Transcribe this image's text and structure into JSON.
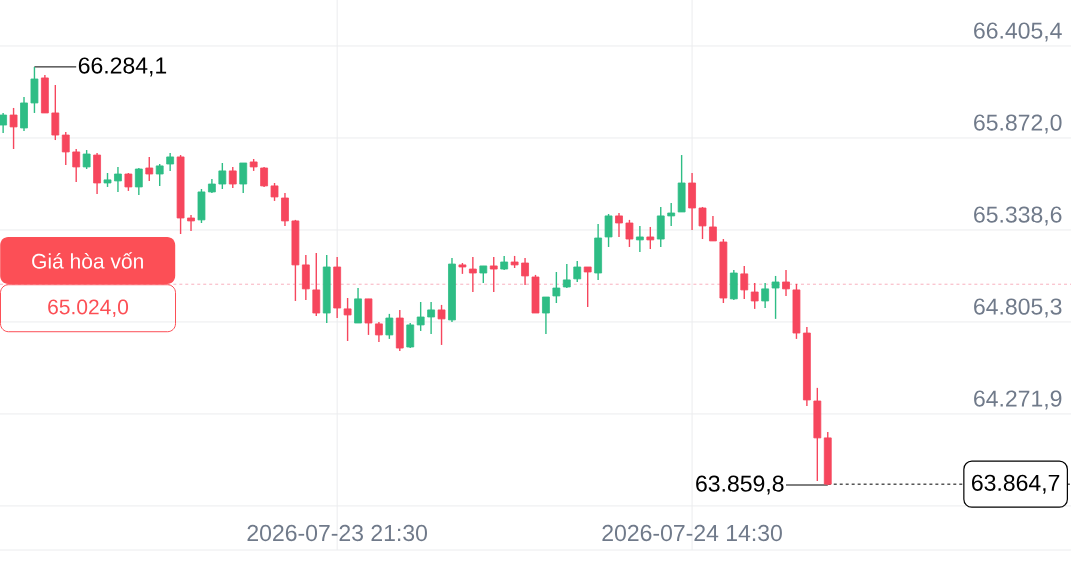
{
  "chart_data": {
    "type": "candlestick",
    "x": [
      "2026-07-23T05:30",
      "2026-07-23T06:00",
      "2026-07-23T06:30",
      "2026-07-23T07:00",
      "2026-07-23T07:30",
      "2026-07-23T08:00",
      "2026-07-23T08:30",
      "2026-07-23T09:00",
      "2026-07-23T09:30",
      "2026-07-23T10:00",
      "2026-07-23T10:30",
      "2026-07-23T11:00",
      "2026-07-23T11:30",
      "2026-07-23T12:00",
      "2026-07-23T12:30",
      "2026-07-23T13:00",
      "2026-07-23T13:30",
      "2026-07-23T14:00",
      "2026-07-23T14:30",
      "2026-07-23T15:00",
      "2026-07-23T15:30",
      "2026-07-23T16:00",
      "2026-07-23T16:30",
      "2026-07-23T17:00",
      "2026-07-23T17:30",
      "2026-07-23T18:00",
      "2026-07-23T18:30",
      "2026-07-23T19:00",
      "2026-07-23T19:30",
      "2026-07-23T20:00",
      "2026-07-23T20:30",
      "2026-07-23T21:00",
      "2026-07-23T21:30",
      "2026-07-23T22:00",
      "2026-07-23T22:30",
      "2026-07-23T23:00",
      "2026-07-23T23:30",
      "2026-07-24T00:00",
      "2026-07-24T00:30",
      "2026-07-24T01:00",
      "2026-07-24T01:30",
      "2026-07-24T02:00",
      "2026-07-24T02:30",
      "2026-07-24T03:00",
      "2026-07-24T03:30",
      "2026-07-24T04:00",
      "2026-07-24T04:30",
      "2026-07-24T05:00",
      "2026-07-24T05:30",
      "2026-07-24T06:00",
      "2026-07-24T06:30",
      "2026-07-24T07:00",
      "2026-07-24T07:30",
      "2026-07-24T08:00",
      "2026-07-24T08:30",
      "2026-07-24T09:00",
      "2026-07-24T09:30",
      "2026-07-24T10:00",
      "2026-07-24T10:30",
      "2026-07-24T11:00",
      "2026-07-24T11:30",
      "2026-07-24T12:00",
      "2026-07-24T12:30",
      "2026-07-24T13:00",
      "2026-07-24T13:30",
      "2026-07-24T14:00",
      "2026-07-24T14:30",
      "2026-07-24T15:00",
      "2026-07-24T15:30",
      "2026-07-24T16:00",
      "2026-07-24T16:30",
      "2026-07-24T17:00",
      "2026-07-24T17:30",
      "2026-07-24T18:00",
      "2026-07-24T18:30",
      "2026-07-24T19:00",
      "2026-07-24T19:30",
      "2026-07-24T20:00",
      "2026-07-24T20:30",
      "2026-07-24T21:00"
    ],
    "ohlc": [
      [
        65947,
        66017,
        65901,
        66005
      ],
      [
        66005,
        66046,
        65808,
        65936
      ],
      [
        65930,
        66110,
        65913,
        66075
      ],
      [
        66075,
        66284.1,
        66017,
        66214
      ],
      [
        66220,
        66237,
        66017,
        66017
      ],
      [
        66017,
        66179,
        65860,
        65889
      ],
      [
        65889,
        65907,
        65715,
        65791
      ],
      [
        65791,
        65808,
        65617,
        65704
      ],
      [
        65704,
        65802,
        65692,
        65779
      ],
      [
        65773,
        65785,
        65547,
        65611
      ],
      [
        65611,
        65669,
        65588,
        65629
      ],
      [
        65623,
        65704,
        65559,
        65663
      ],
      [
        65663,
        65669,
        65565,
        65588
      ],
      [
        65588,
        65698,
        65542,
        65692
      ],
      [
        65698,
        65762,
        65623,
        65663
      ],
      [
        65663,
        65721,
        65594,
        65710
      ],
      [
        65721,
        65785,
        65681,
        65762
      ],
      [
        65762,
        65773,
        65315,
        65408
      ],
      [
        65408,
        65426,
        65333,
        65391
      ],
      [
        65397,
        65576,
        65379,
        65559
      ],
      [
        65559,
        65634,
        65553,
        65605
      ],
      [
        65605,
        65727,
        65576,
        65681
      ],
      [
        65681,
        65704,
        65582,
        65605
      ],
      [
        65605,
        65727,
        65553,
        65727
      ],
      [
        65733,
        65750,
        65681,
        65704
      ],
      [
        65698,
        65704,
        65588,
        65594
      ],
      [
        65594,
        65611,
        65507,
        65530
      ],
      [
        65524,
        65553,
        65362,
        65391
      ],
      [
        65391,
        65397,
        64927,
        65136
      ],
      [
        65136,
        65194,
        64933,
        64997
      ],
      [
        64991,
        65205,
        64840,
        64857
      ],
      [
        64857,
        65194,
        64799,
        65124
      ],
      [
        65124,
        65182,
        64828,
        64886
      ],
      [
        64881,
        64944,
        64695,
        64846
      ],
      [
        64799,
        65002,
        64799,
        64939
      ],
      [
        64939,
        64939,
        64730,
        64799
      ],
      [
        64794,
        64805,
        64689,
        64730
      ],
      [
        64730,
        64852,
        64707,
        64828
      ],
      [
        64828,
        64875,
        64637,
        64654
      ],
      [
        64660,
        64799,
        64654,
        64788
      ],
      [
        64788,
        64921,
        64753,
        64834
      ],
      [
        64834,
        64921,
        64736,
        64875
      ],
      [
        64875,
        64904,
        64672,
        64823
      ],
      [
        64817,
        65176,
        64805,
        65141
      ],
      [
        65136,
        65147,
        65084,
        65124
      ],
      [
        65112,
        65182,
        64979,
        65089
      ],
      [
        65089,
        65130,
        65031,
        65130
      ],
      [
        65130,
        65182,
        64979,
        65112
      ],
      [
        65112,
        65188,
        65107,
        65153
      ],
      [
        65153,
        65188,
        65118,
        65136
      ],
      [
        65147,
        65176,
        65020,
        65072
      ],
      [
        65066,
        65078,
        64857,
        64857
      ],
      [
        64857,
        64950,
        64736,
        64950
      ],
      [
        64956,
        65095,
        64915,
        65002
      ],
      [
        65008,
        65141,
        65002,
        65049
      ],
      [
        65055,
        65159,
        65037,
        65124
      ],
      [
        65124,
        65124,
        64892,
        65095
      ],
      [
        65089,
        65373,
        65049,
        65292
      ],
      [
        65298,
        65431,
        65240,
        65420
      ],
      [
        65420,
        65437,
        65298,
        65379
      ],
      [
        65379,
        65397,
        65240,
        65286
      ],
      [
        65281,
        65362,
        65211,
        65298
      ],
      [
        65298,
        65356,
        65228,
        65281
      ],
      [
        65286,
        65472,
        65240,
        65420
      ],
      [
        65420,
        65495,
        65362,
        65437
      ],
      [
        65443,
        65773,
        65443,
        65611
      ],
      [
        65611,
        65669,
        65339,
        65466
      ],
      [
        65466,
        65472,
        65286,
        65362
      ],
      [
        65356,
        65420,
        65275,
        65275
      ],
      [
        65269,
        65286,
        64915,
        64944
      ],
      [
        64939,
        65107,
        64933,
        65089
      ],
      [
        65084,
        65130,
        64939,
        64991
      ],
      [
        64979,
        65031,
        64881,
        64927
      ],
      [
        64927,
        65031,
        64886,
        64997
      ],
      [
        65002,
        65072,
        64823,
        65037
      ],
      [
        65037,
        65107,
        64956,
        64997
      ],
      [
        64991,
        65026,
        64707,
        64741
      ],
      [
        64741,
        64776,
        64318,
        64353
      ],
      [
        64347,
        64423,
        63883,
        64133
      ],
      [
        64133,
        64167,
        63859.8,
        63864.7
      ]
    ],
    "colors": [
      "#2ebd85",
      "#f6465d",
      "#2ebd85",
      "#2ebd85",
      "#f6465d",
      "#f6465d",
      "#f6465d",
      "#f6465d",
      "#2ebd85",
      "#f6465d",
      "#2ebd85",
      "#2ebd85",
      "#f6465d",
      "#2ebd85",
      "#f6465d",
      "#2ebd85",
      "#2ebd85",
      "#f6465d",
      "#f6465d",
      "#2ebd85",
      "#2ebd85",
      "#2ebd85",
      "#f6465d",
      "#2ebd85",
      "#f6465d",
      "#f6465d",
      "#f6465d",
      "#f6465d",
      "#f6465d",
      "#f6465d",
      "#f6465d",
      "#2ebd85",
      "#f6465d",
      "#f6465d",
      "#2ebd85",
      "#f6465d",
      "#f6465d",
      "#2ebd85",
      "#f6465d",
      "#2ebd85",
      "#2ebd85",
      "#2ebd85",
      "#f6465d",
      "#2ebd85",
      "#f6465d",
      "#f6465d",
      "#2ebd85",
      "#f6465d",
      "#2ebd85",
      "#f6465d",
      "#f6465d",
      "#f6465d",
      "#2ebd85",
      "#2ebd85",
      "#2ebd85",
      "#2ebd85",
      "#f6465d",
      "#2ebd85",
      "#2ebd85",
      "#f6465d",
      "#f6465d",
      "#2ebd85",
      "#f6465d",
      "#2ebd85",
      "#2ebd85",
      "#2ebd85",
      "#f6465d",
      "#f6465d",
      "#f6465d",
      "#f6465d",
      "#2ebd85",
      "#f6465d",
      "#f6465d",
      "#2ebd85",
      "#2ebd85",
      "#f6465d",
      "#f6465d",
      "#f6465d",
      "#f6465d",
      "#f6465d"
    ],
    "xlim": [
      "2026-07-23T05:21",
      "2026-07-25T08:39"
    ],
    "xticks": [
      {
        "value": "2026-07-23T21:30",
        "label": "2026-07-23 21:30"
      },
      {
        "value": "2026-07-24T14:30",
        "label": "2026-07-24 14:30"
      }
    ],
    "ylim": [
      63483,
      66672
    ],
    "yticks": [
      {
        "value": 63738.5,
        "label": null
      },
      {
        "value": 64271.9,
        "label": "64.271,9"
      },
      {
        "value": 64805.3,
        "label": "64.805,3"
      },
      {
        "value": 65338.6,
        "label": "65.338,6"
      },
      {
        "value": 65872.0,
        "label": "65.872,0"
      },
      {
        "value": 66405.4,
        "label": "66.405,4"
      }
    ],
    "grid": true,
    "ref_lines": [
      {
        "axis": "y",
        "value": 65024.0,
        "label": "Giá hòa vốn",
        "color": "#f8b0be",
        "line_style": "dashed"
      },
      {
        "axis": "y",
        "value": 63864.7,
        "label": "63.864,7",
        "color": "#000000",
        "line_style": "dashed"
      }
    ],
    "annotations": [
      {
        "text": "66.284,1",
        "x": "2026-07-23T07:00",
        "y": 66284.1
      },
      {
        "text": "63.859,8",
        "x": "2026-07-24T21:00",
        "y": 63859.8
      },
      {
        "text": "65.024,0",
        "y": 65024.0
      }
    ]
  }
}
